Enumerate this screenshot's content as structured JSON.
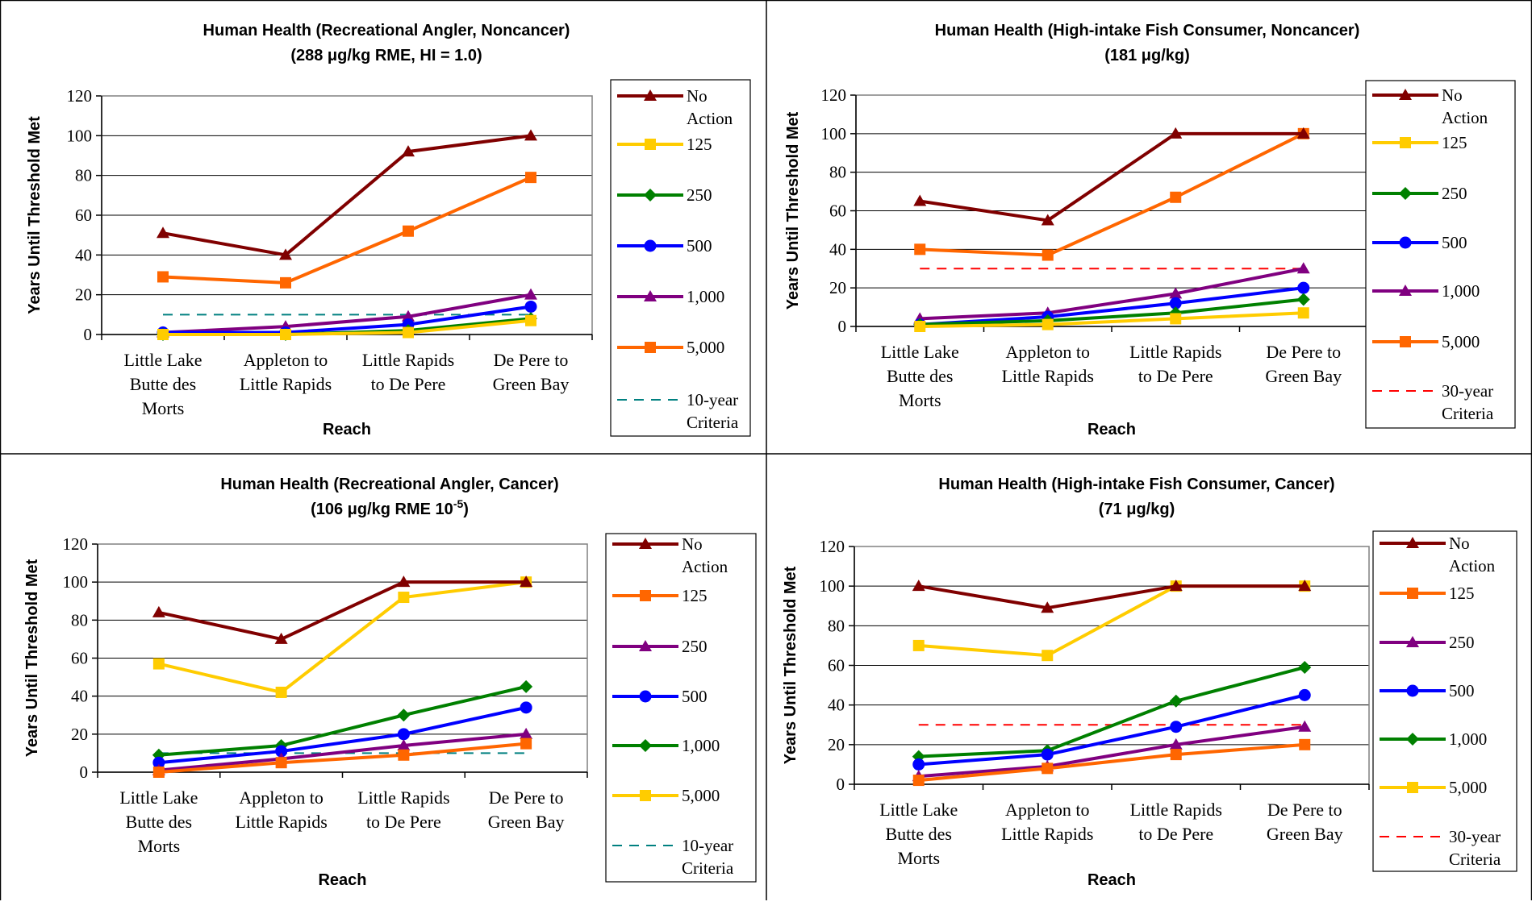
{
  "chart_data": [
    {
      "type": "line",
      "title": "Human Health (Recreational Angler, Noncancer)",
      "subtitle": "(288 μg/kg RME, HI = 1.0)",
      "xlabel": "Reach",
      "ylabel": "Years Until Threshold Met",
      "ylim": [
        0,
        120
      ],
      "yticks": [
        0,
        20,
        40,
        60,
        80,
        100,
        120
      ],
      "categories": [
        "Little Lake Butte des Morts",
        "Appleton to Little Rapids",
        "Little Rapids to De Pere",
        "De Pere to Green Bay"
      ],
      "category_lines": [
        [
          "Little Lake",
          "Butte des",
          "Morts"
        ],
        [
          "Appleton to",
          "Little Rapids"
        ],
        [
          "Little Rapids",
          "to De Pere"
        ],
        [
          "De Pere to",
          "Green Bay"
        ]
      ],
      "grid": true,
      "legend_position": "right",
      "series": [
        {
          "name": "No Action",
          "legend_lines": [
            "No",
            "Action"
          ],
          "color": "#800000",
          "marker": "triangle",
          "values": [
            51,
            40,
            92,
            100
          ]
        },
        {
          "name": "125",
          "legend_lines": [
            "125"
          ],
          "color": "#FFCC00",
          "marker": "square",
          "values": [
            0,
            0,
            1,
            7
          ]
        },
        {
          "name": "250",
          "legend_lines": [
            "250"
          ],
          "color": "#008000",
          "marker": "diamond",
          "values": [
            0,
            0,
            2,
            8
          ]
        },
        {
          "name": "500",
          "legend_lines": [
            "500"
          ],
          "color": "#0000FF",
          "marker": "circle",
          "values": [
            1,
            1,
            5,
            14
          ]
        },
        {
          "name": "1,000",
          "legend_lines": [
            "1,000"
          ],
          "color": "#800080",
          "marker": "triangle",
          "values": [
            1,
            4,
            9,
            20
          ]
        },
        {
          "name": "5,000",
          "legend_lines": [
            "5,000"
          ],
          "color": "#FF6600",
          "marker": "square",
          "values": [
            29,
            26,
            52,
            79
          ]
        },
        {
          "name": "10-year Criteria",
          "legend_lines": [
            "10-year",
            "Criteria"
          ],
          "color": "#008080",
          "dash": "12,9",
          "values": [
            10,
            10,
            10,
            10
          ]
        }
      ]
    },
    {
      "type": "line",
      "title": "Human Health (High-intake Fish Consumer, Noncancer)",
      "subtitle": "(181 μg/kg)",
      "xlabel": "Reach",
      "ylabel": "Years Until Threshold Met",
      "ylim": [
        0,
        120
      ],
      "yticks": [
        0,
        20,
        40,
        60,
        80,
        100,
        120
      ],
      "categories": [
        "Little Lake Butte des Morts",
        "Appleton to Little Rapids",
        "Little Rapids to De Pere",
        "De Pere to Green Bay"
      ],
      "category_lines": [
        [
          "Little Lake",
          "Butte des",
          "Morts"
        ],
        [
          "Appleton to",
          "Little Rapids"
        ],
        [
          "Little Rapids",
          "to De Pere"
        ],
        [
          "De Pere to",
          "Green Bay"
        ]
      ],
      "grid": true,
      "legend_position": "right",
      "series": [
        {
          "name": "No Action",
          "legend_lines": [
            "No",
            "Action"
          ],
          "color": "#800000",
          "marker": "triangle",
          "values": [
            65,
            55,
            100,
            100
          ]
        },
        {
          "name": "125",
          "legend_lines": [
            "125"
          ],
          "color": "#FFCC00",
          "marker": "square",
          "values": [
            0,
            1,
            4,
            7
          ]
        },
        {
          "name": "250",
          "legend_lines": [
            "250"
          ],
          "color": "#008000",
          "marker": "diamond",
          "values": [
            1,
            3,
            7,
            14
          ]
        },
        {
          "name": "500",
          "legend_lines": [
            "500"
          ],
          "color": "#0000FF",
          "marker": "circle",
          "values": [
            1,
            5,
            12,
            20
          ]
        },
        {
          "name": "1,000",
          "legend_lines": [
            "1,000"
          ],
          "color": "#800080",
          "marker": "triangle",
          "values": [
            4,
            7,
            17,
            30
          ]
        },
        {
          "name": "5,000",
          "legend_lines": [
            "5,000"
          ],
          "color": "#FF6600",
          "marker": "square",
          "values": [
            40,
            37,
            67,
            100
          ]
        },
        {
          "name": "30-year Criteria",
          "legend_lines": [
            "30-year",
            "Criteria"
          ],
          "color": "#FF0000",
          "dash": "12,9",
          "values": [
            30,
            30,
            30,
            30
          ]
        }
      ]
    },
    {
      "type": "line",
      "title": "Human Health (Recreational Angler, Cancer)",
      "subtitle": "(106 μg/kg RME 10",
      "subtitle_sup": "-5",
      "subtitle_end": ")",
      "xlabel": "Reach",
      "ylabel": "Years Until Threshold Met",
      "ylim": [
        0,
        120
      ],
      "yticks": [
        0,
        20,
        40,
        60,
        80,
        100,
        120
      ],
      "categories": [
        "Little Lake Butte des Morts",
        "Appleton to Little Rapids",
        "Little Rapids to De Pere",
        "De Pere to Green Bay"
      ],
      "category_lines": [
        [
          "Little Lake",
          "Butte des",
          "Morts"
        ],
        [
          "Appleton to",
          "Little Rapids"
        ],
        [
          "Little Rapids",
          "to De Pere"
        ],
        [
          "De Pere to",
          "Green Bay"
        ]
      ],
      "grid": true,
      "legend_position": "right",
      "series": [
        {
          "name": "No Action",
          "legend_lines": [
            "No",
            "Action"
          ],
          "color": "#800000",
          "marker": "triangle",
          "values": [
            84,
            70,
            100,
            100
          ]
        },
        {
          "name": "125",
          "legend_lines": [
            "125"
          ],
          "color": "#FF6600",
          "marker": "square",
          "values": [
            0,
            5,
            9,
            15
          ]
        },
        {
          "name": "250",
          "legend_lines": [
            "250"
          ],
          "color": "#800080",
          "marker": "triangle",
          "values": [
            1,
            7,
            14,
            20
          ]
        },
        {
          "name": "500",
          "legend_lines": [
            "500"
          ],
          "color": "#0000FF",
          "marker": "circle",
          "values": [
            5,
            11,
            20,
            34
          ]
        },
        {
          "name": "1,000",
          "legend_lines": [
            "1,000"
          ],
          "color": "#008000",
          "marker": "diamond",
          "values": [
            9,
            14,
            30,
            45
          ]
        },
        {
          "name": "5,000",
          "legend_lines": [
            "5,000"
          ],
          "color": "#FFCC00",
          "marker": "square",
          "values": [
            57,
            42,
            92,
            100
          ]
        },
        {
          "name": "10-year Criteria",
          "legend_lines": [
            "10-year",
            "Criteria"
          ],
          "color": "#008080",
          "dash": "12,9",
          "values": [
            10,
            10,
            10,
            10
          ]
        }
      ]
    },
    {
      "type": "line",
      "title": "Human Health (High-intake Fish Consumer, Cancer)",
      "subtitle": "(71 μg/kg)",
      "xlabel": "Reach",
      "ylabel": "Years Until Threshold Met",
      "ylim": [
        0,
        120
      ],
      "yticks": [
        0,
        20,
        40,
        60,
        80,
        100,
        120
      ],
      "categories": [
        "Little Lake Butte des Morts",
        "Appleton to Little Rapids",
        "Little Rapids to De Pere",
        "De Pere to Green Bay"
      ],
      "category_lines": [
        [
          "Little Lake",
          "Butte des",
          "Morts"
        ],
        [
          "Appleton to",
          "Little Rapids"
        ],
        [
          "Little Rapids",
          "to De Pere"
        ],
        [
          "De Pere to",
          "Green Bay"
        ]
      ],
      "grid": true,
      "legend_position": "right",
      "series": [
        {
          "name": "No Action",
          "legend_lines": [
            "No",
            "Action"
          ],
          "color": "#800000",
          "marker": "triangle",
          "values": [
            100,
            89,
            100,
            100
          ]
        },
        {
          "name": "125",
          "legend_lines": [
            "125"
          ],
          "color": "#FF6600",
          "marker": "square",
          "values": [
            2,
            8,
            15,
            20
          ]
        },
        {
          "name": "250",
          "legend_lines": [
            "250"
          ],
          "color": "#800080",
          "marker": "triangle",
          "values": [
            4,
            9,
            20,
            29
          ]
        },
        {
          "name": "500",
          "legend_lines": [
            "500"
          ],
          "color": "#0000FF",
          "marker": "circle",
          "values": [
            10,
            15,
            29,
            45
          ]
        },
        {
          "name": "1,000",
          "legend_lines": [
            "1,000"
          ],
          "color": "#008000",
          "marker": "diamond",
          "values": [
            14,
            17,
            42,
            59
          ]
        },
        {
          "name": "5,000",
          "legend_lines": [
            "5,000"
          ],
          "color": "#FFCC00",
          "marker": "square",
          "values": [
            70,
            65,
            100,
            100
          ]
        },
        {
          "name": "30-year Criteria",
          "legend_lines": [
            "30-year",
            "Criteria"
          ],
          "color": "#FF0000",
          "dash": "12,9",
          "values": [
            30,
            30,
            30,
            30
          ]
        }
      ]
    }
  ]
}
